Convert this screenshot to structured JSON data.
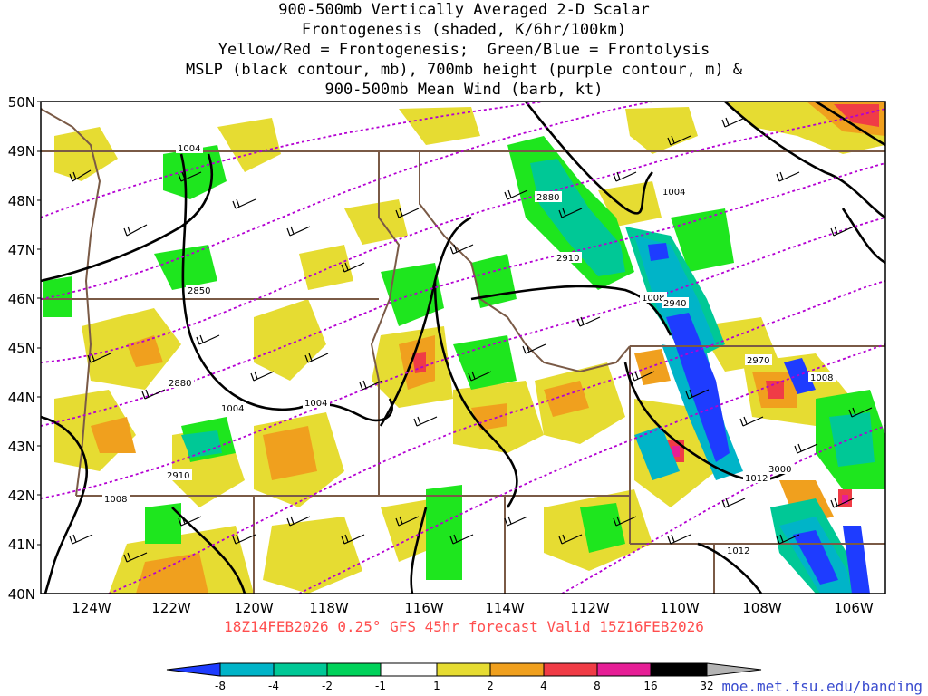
{
  "title_lines": [
    "900-500mb Vertically Averaged 2-D Scalar",
    "Frontogenesis (shaded, K/6hr/100km)",
    "Yellow/Red = Frontogenesis;  Green/Blue = Frontolysis",
    "MSLP (black contour, mb), 700mb height (purple contour, m) &",
    "900-500mb Mean Wind (barb, kt)"
  ],
  "valid_line": "18Z14FEB2026 0.25° GFS 45hr forecast Valid 15Z16FEB2026",
  "credit": "moe.met.fsu.edu/banding",
  "lat_labels": [
    "50N",
    "49N",
    "48N",
    "47N",
    "46N",
    "45N",
    "44N",
    "43N",
    "42N",
    "41N",
    "40N"
  ],
  "lon_labels": [
    "124W",
    "122W",
    "120W",
    "118W",
    "116W",
    "114W",
    "112W",
    "110W",
    "108W",
    "106W"
  ],
  "colorbar": {
    "tick_labels": [
      "-8",
      "-4",
      "-2",
      "-1",
      "1",
      "2",
      "4",
      "8",
      "16",
      "32"
    ],
    "colors": [
      "#1e3cff",
      "#00b4c8",
      "#00c896",
      "#00d25a",
      "#1ee61e",
      "#ffffff",
      "#e6dc32",
      "#f0a01e",
      "#f06e28",
      "#f03c46",
      "#e61e96",
      "#000000",
      "#b4b4b4"
    ]
  },
  "mslp_labels": [
    "1004",
    "1004",
    "1004",
    "1004",
    "1008",
    "1008",
    "1008",
    "1012",
    "1012"
  ],
  "height_labels": [
    "2850",
    "2880",
    "2880",
    "2910",
    "2910",
    "2940",
    "2970",
    "3000"
  ],
  "colors": {
    "mslp": "#000000",
    "height": "#b400d2",
    "borders": "#7a5a46",
    "frontolysis_strong": "#1e3cff",
    "frontogenesis": "#e6dc32"
  }
}
